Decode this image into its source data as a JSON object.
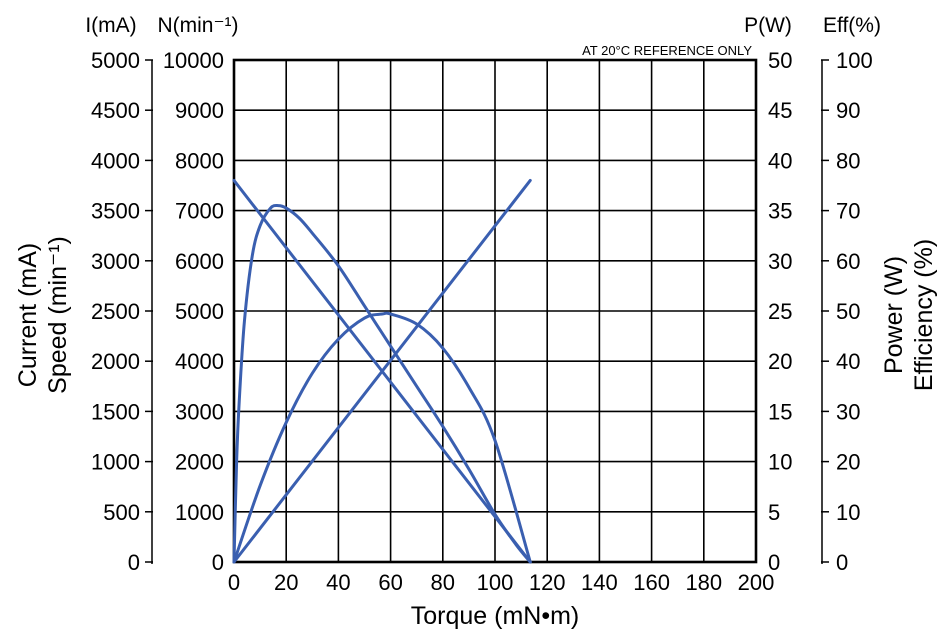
{
  "chart_data": {
    "type": "line",
    "note": "AT 20°C REFERENCE ONLY",
    "x_axis": {
      "title": "Torque (mN•m)",
      "ticks": [
        "0",
        "20",
        "40",
        "60",
        "80",
        "100",
        "120",
        "140",
        "160",
        "180",
        "200"
      ],
      "range": [
        0,
        200
      ]
    },
    "left_axes": [
      {
        "header": "I(mA)",
        "title": "Current (mA)",
        "range": [
          0,
          5000
        ],
        "ticks": [
          "0",
          "500",
          "1000",
          "1500",
          "2000",
          "2500",
          "3000",
          "3500",
          "4000",
          "4500",
          "5000"
        ]
      },
      {
        "header": "N(min⁻¹)",
        "title": "Speed (min⁻¹)",
        "range": [
          0,
          10000
        ],
        "ticks": [
          "0",
          "1000",
          "2000",
          "3000",
          "4000",
          "5000",
          "6000",
          "7000",
          "8000",
          "9000",
          "10000"
        ]
      }
    ],
    "right_axes": [
      {
        "header": "P(W)",
        "title": "Power (W)",
        "range": [
          0,
          50
        ],
        "ticks": [
          "0",
          "5",
          "10",
          "15",
          "20",
          "25",
          "30",
          "35",
          "40",
          "45",
          "50"
        ]
      },
      {
        "header": "Eff(%)",
        "title": "Efficiency (%)",
        "range": [
          0,
          100
        ],
        "ticks": [
          "0",
          "10",
          "20",
          "30",
          "40",
          "50",
          "60",
          "70",
          "80",
          "90",
          "100"
        ]
      }
    ],
    "grid": true,
    "line_color": "#3a5fb0",
    "series": [
      {
        "axis": "speed",
        "x": [
          0,
          113.5
        ],
        "y": [
          7600,
          0
        ]
      },
      {
        "axis": "current",
        "x": [
          0,
          113.5
        ],
        "y": [
          0,
          3800
        ]
      },
      {
        "axis": "power",
        "x": [
          0,
          10,
          20,
          30,
          40,
          50,
          56.75,
          60,
          70,
          80,
          90,
          100,
          113.5
        ],
        "y": [
          0,
          7.6,
          13.9,
          18.8,
          22.2,
          24.3,
          24.7,
          24.7,
          23.7,
          21.3,
          17.4,
          12.1,
          0
        ]
      },
      {
        "axis": "efficiency",
        "x": [
          0,
          1,
          2,
          4,
          7,
          10,
          14,
          17,
          20,
          25,
          30,
          40,
          50,
          60,
          70,
          80,
          90,
          100,
          108,
          113.5
        ],
        "y": [
          0,
          20,
          32,
          48,
          61,
          67,
          70.5,
          71,
          70.5,
          68.5,
          65.5,
          59,
          51,
          43,
          35,
          27,
          18.5,
          9.5,
          3.5,
          0
        ]
      }
    ]
  }
}
